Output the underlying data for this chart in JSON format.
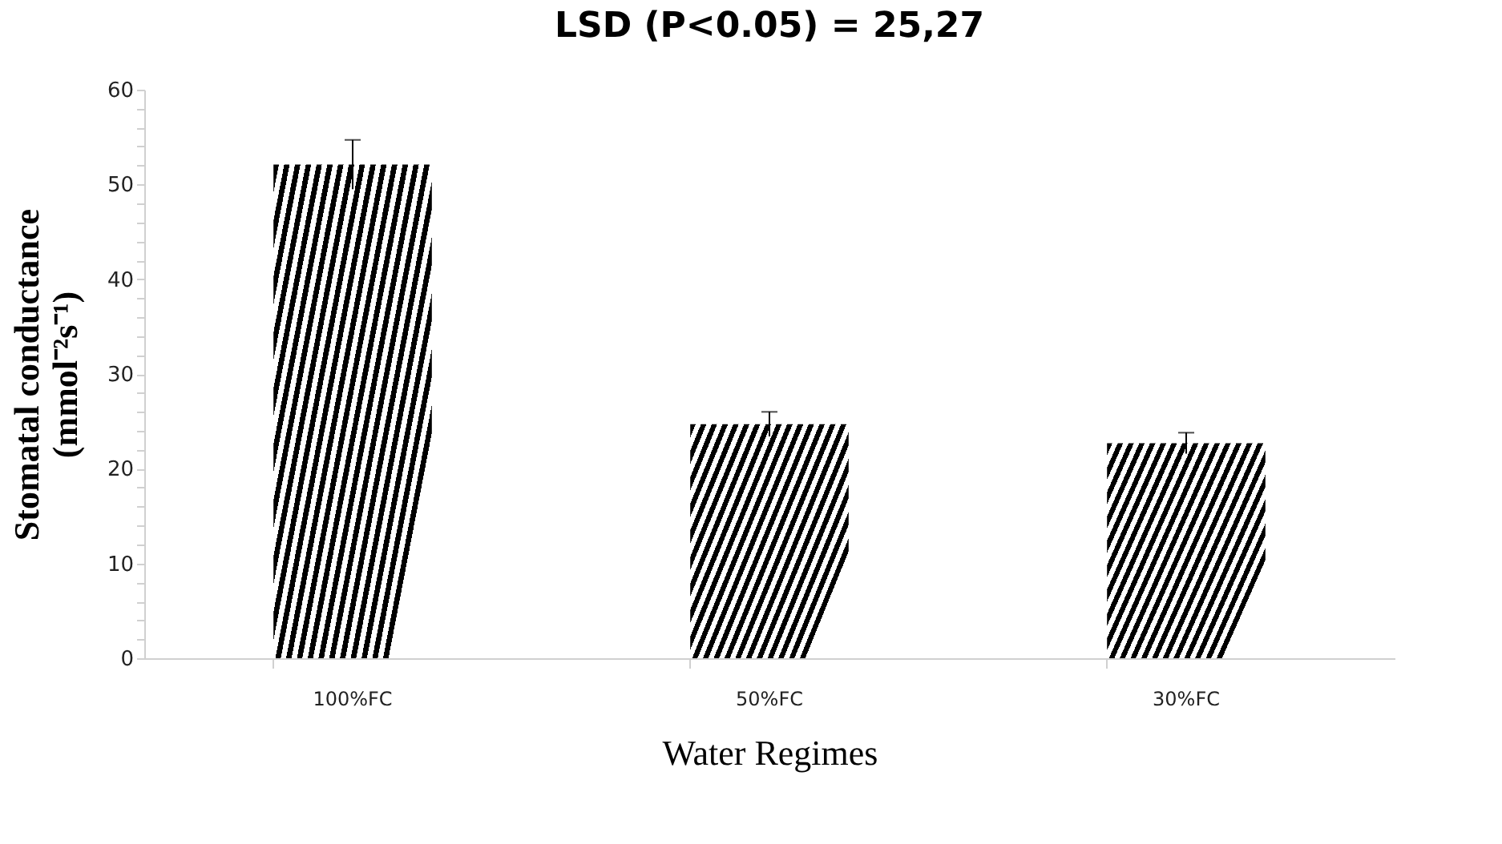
{
  "chart_data": {
    "type": "bar",
    "title": "LSD (P<0.05) = 25,27",
    "xlabel": "Water Regimes",
    "ylabel": "Stomatal conductance\n(mmol⁻²s⁻¹)",
    "categories": [
      "100%FC",
      "50%FC",
      "30%FC"
    ],
    "values": [
      52.1,
      24.7,
      22.7
    ],
    "errors": [
      2.6,
      1.3,
      1.1
    ],
    "color": "#000000",
    "ylim": [
      0,
      60
    ],
    "yticks": [
      0,
      {
        "value": 2,
        "label": null
      },
      {
        "value": 4,
        "label": null
      },
      {
        "value": 6,
        "label": null
      },
      {
        "value": 8,
        "label": null
      },
      10,
      {
        "value": 12,
        "label": null
      },
      {
        "value": 14,
        "label": null
      },
      {
        "value": 16,
        "label": null
      },
      {
        "value": 18,
        "label": null
      },
      20,
      {
        "value": 22,
        "label": null
      },
      {
        "value": 24,
        "label": null
      },
      {
        "value": 26,
        "label": null
      },
      {
        "value": 28,
        "label": null
      },
      30,
      {
        "value": 32,
        "label": null
      },
      {
        "value": 34,
        "label": null
      },
      {
        "value": 36,
        "label": null
      },
      {
        "value": 38,
        "label": null
      },
      40,
      {
        "value": 42,
        "label": null
      },
      {
        "value": 44,
        "label": null
      },
      {
        "value": 46,
        "label": null
      },
      {
        "value": 48,
        "label": null
      },
      50,
      {
        "value": 52,
        "label": null
      },
      {
        "value": 54,
        "label": null
      },
      {
        "value": 56,
        "label": null
      },
      {
        "value": 58,
        "label": null
      },
      60
    ],
    "grid": false
  }
}
